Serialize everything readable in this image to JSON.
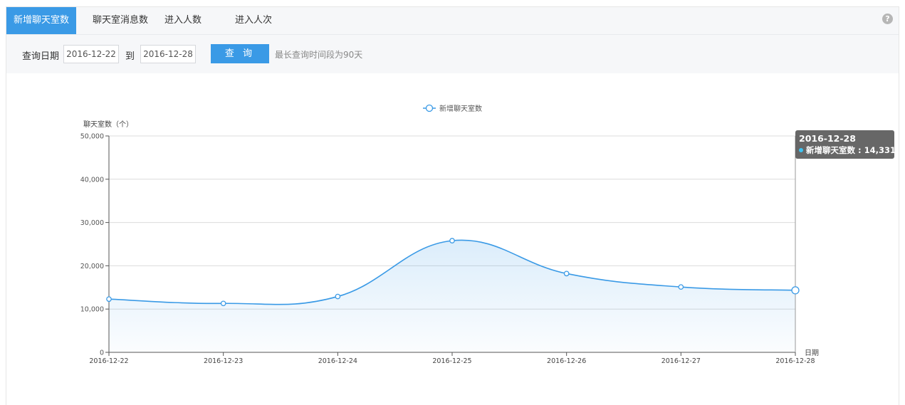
{
  "tabs": [
    {
      "label": "新增聊天室数",
      "active": true
    },
    {
      "label": "聊天室消息数",
      "active": false
    },
    {
      "label": "进入人数",
      "active": false
    },
    {
      "label": "进入人次",
      "active": false
    }
  ],
  "help_icon": "question-circle-icon",
  "filter": {
    "date_label": "查询日期",
    "start_date": "2016-12-22",
    "to_label": "到",
    "end_date": "2016-12-28",
    "query_button": "查 询",
    "hint": "最长查询时间段为90天"
  },
  "colors": {
    "accent": "#3a9ae6",
    "line": "#3a9ae6",
    "tooltip_dot": "#3ec3f2"
  },
  "tooltip": {
    "date": "2016-12-28",
    "series": "新增聊天室数",
    "value": "14,331"
  },
  "chart_data": {
    "type": "area",
    "legend": [
      "新增聊天室数"
    ],
    "legend_position": "top-center",
    "ylabel": "聊天室数（个）",
    "xlabel": "日期",
    "ylim": [
      0,
      50000
    ],
    "yticks": [
      0,
      10000,
      20000,
      30000,
      40000,
      50000
    ],
    "ytick_labels": [
      "0",
      "10,000",
      "20,000",
      "30,000",
      "40,000",
      "50,000"
    ],
    "grid": true,
    "categories": [
      "2016-12-22",
      "2016-12-23",
      "2016-12-24",
      "2016-12-25",
      "2016-12-26",
      "2016-12-27",
      "2016-12-28"
    ],
    "series": [
      {
        "name": "新增聊天室数",
        "values": [
          12300,
          11300,
          12900,
          25800,
          18200,
          15100,
          14331
        ]
      }
    ]
  }
}
